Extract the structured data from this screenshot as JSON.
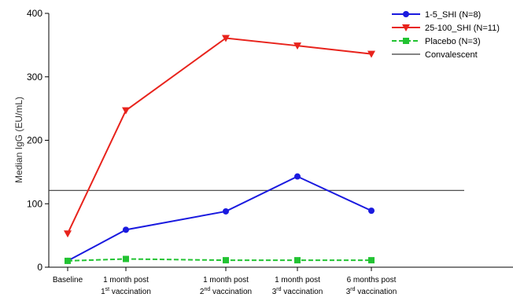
{
  "chart_data": {
    "type": "line",
    "title": "",
    "ylabel": "Median IgG (EU/mL)",
    "xlabel": "",
    "ylim": [
      0,
      400
    ],
    "yticks": [
      0,
      100,
      200,
      300,
      400
    ],
    "grid": false,
    "legend_position": "top-right",
    "categories": [
      {
        "line1": "Baseline",
        "line2": "",
        "sup": "",
        "line2_rest": ""
      },
      {
        "line1": "1 month post",
        "line2": "1",
        "sup": "st",
        "line2_rest": " vaccination"
      },
      {
        "line1": "1 month post",
        "line2": "2",
        "sup": "nd",
        "line2_rest": " vaccination"
      },
      {
        "line1": "1 month post",
        "line2": "3",
        "sup": "rd",
        "line2_rest": " vaccination"
      },
      {
        "line1": "6 months post",
        "line2": "3",
        "sup": "rd",
        "line2_rest": " vaccination"
      }
    ],
    "series": [
      {
        "name": "1-5_SHI (N=8)",
        "color": "#1a1adf",
        "marker": "circle",
        "dash": "solid",
        "values": [
          10,
          59,
          88,
          143,
          89
        ]
      },
      {
        "name": "25-100_SHI (N=11)",
        "color": "#e8231c",
        "marker": "triangle-down",
        "dash": "solid",
        "values": [
          53,
          247,
          361,
          349,
          336
        ]
      },
      {
        "name": "Placebo (N=3)",
        "color": "#22c332",
        "marker": "square",
        "dash": "dashed",
        "values": [
          10,
          13,
          11,
          11,
          11
        ]
      }
    ],
    "reference_lines": [
      {
        "name": "Convalescent",
        "value": 121,
        "color": "#3a3a3a"
      }
    ]
  }
}
